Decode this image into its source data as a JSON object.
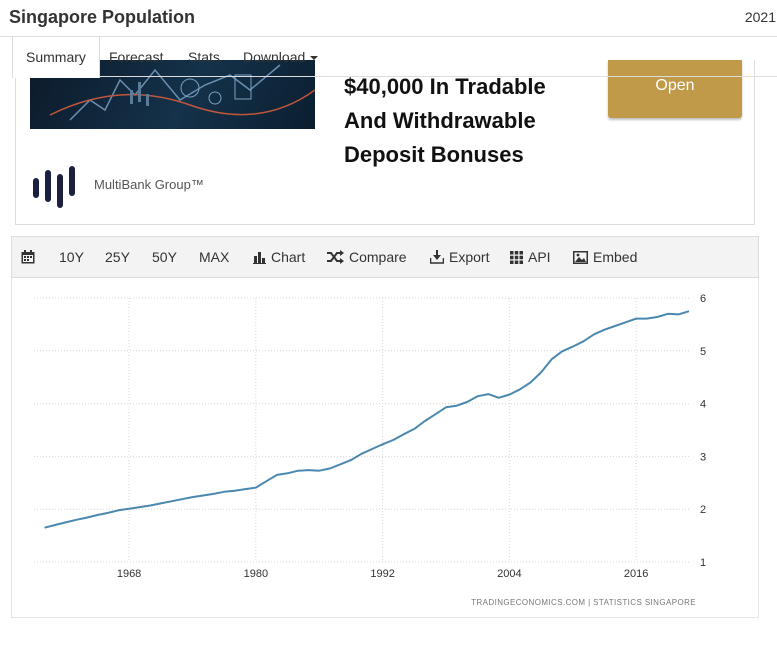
{
  "header": {
    "title": "Singapore Population",
    "year": "2021"
  },
  "tabs": [
    {
      "label": "Summary",
      "active": true
    },
    {
      "label": "Forecast"
    },
    {
      "label": "Stats"
    },
    {
      "label": "Download"
    }
  ],
  "ad": {
    "headline": [
      "$40,000 In Tradable",
      "And Withdrawable",
      "Deposit Bonuses"
    ],
    "button_label": "Open",
    "brand": "MultiBank Group™",
    "button_color": "#c09a48"
  },
  "toolbar": {
    "calendar_icon": "calendar-icon",
    "ranges": [
      "10Y",
      "25Y",
      "50Y",
      "MAX"
    ],
    "chart_label": "Chart",
    "compare_label": "Compare",
    "export_label": "Export",
    "api_label": "API",
    "embed_label": "Embed"
  },
  "chart_data": {
    "type": "line",
    "x": [
      1960,
      1961,
      1962,
      1963,
      1964,
      1965,
      1966,
      1967,
      1968,
      1969,
      1970,
      1971,
      1972,
      1973,
      1974,
      1975,
      1976,
      1977,
      1978,
      1979,
      1980,
      1981,
      1982,
      1983,
      1984,
      1985,
      1986,
      1987,
      1988,
      1989,
      1990,
      1991,
      1992,
      1993,
      1994,
      1995,
      1996,
      1997,
      1998,
      1999,
      2000,
      2001,
      2002,
      2003,
      2004,
      2005,
      2006,
      2007,
      2008,
      2009,
      2010,
      2011,
      2012,
      2013,
      2014,
      2015,
      2016,
      2017,
      2018,
      2019,
      2020,
      2021
    ],
    "series": [
      {
        "values": [
          1.65,
          1.7,
          1.75,
          1.8,
          1.84,
          1.89,
          1.93,
          1.98,
          2.01,
          2.04,
          2.07,
          2.11,
          2.15,
          2.19,
          2.23,
          2.26,
          2.29,
          2.33,
          2.35,
          2.38,
          2.41,
          2.53,
          2.65,
          2.68,
          2.73,
          2.74,
          2.73,
          2.77,
          2.85,
          2.93,
          3.05,
          3.14,
          3.23,
          3.31,
          3.42,
          3.52,
          3.67,
          3.8,
          3.93,
          3.96,
          4.03,
          4.14,
          4.18,
          4.11,
          4.17,
          4.27,
          4.4,
          4.59,
          4.84,
          4.99,
          5.08,
          5.18,
          5.31,
          5.4,
          5.47,
          5.54,
          5.61,
          5.61,
          5.64,
          5.7,
          5.69,
          5.75
        ],
        "color": "#4a88b0"
      }
    ],
    "xticks": [
      "1968",
      "1980",
      "1992",
      "2004",
      "2016"
    ],
    "yticks": [
      "1",
      "2",
      "3",
      "4",
      "5",
      "6"
    ],
    "ylim": [
      1,
      6
    ],
    "xlim": [
      1959,
      2021
    ],
    "grid": true,
    "legend": "none",
    "source": "TRADINGECONOMICS.COM  |  STATISTICS SINGAPORE"
  }
}
